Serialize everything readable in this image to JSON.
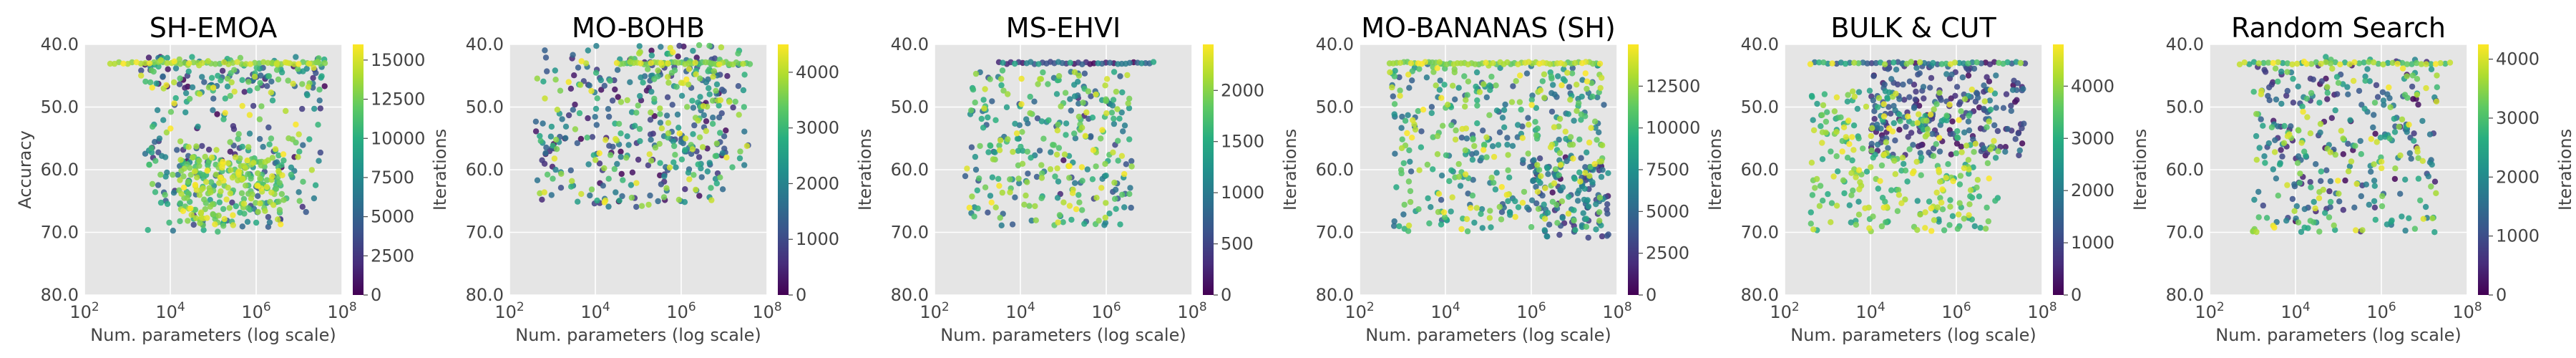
{
  "figure": {
    "background": "#ffffff",
    "axes_facecolor": "#e5e5e5",
    "grid_color": "#ffffff",
    "colormap": "viridis"
  },
  "chart_data": [
    {
      "type": "scatter",
      "title": "SH-EMOA",
      "xlabel": "Num. parameters (log scale)",
      "ylabel": "Accuracy",
      "xscale": "log",
      "xlim": [
        100,
        100000000
      ],
      "ylim": [
        40,
        80
      ],
      "xticks": [
        "10^2",
        "10^4",
        "10^6",
        "10^8"
      ],
      "yticks": [
        "40.0",
        "50.0",
        "60.0",
        "70.0",
        "80.0"
      ],
      "colorbar": {
        "label": "Iterations",
        "range": [
          0,
          16000
        ],
        "ticks": [
          "0",
          "2500",
          "5000",
          "7500",
          "10000",
          "12500",
          "15000"
        ]
      },
      "clusters": [
        {
          "x_log": [
            3.3,
            7.6
          ],
          "y": [
            42,
            47
          ],
          "c": [
            0,
            16000
          ],
          "n": 110
        },
        {
          "x_log": [
            3.5,
            7.5
          ],
          "y": [
            45,
            62
          ],
          "c": [
            0,
            16000
          ],
          "n": 130
        },
        {
          "x_log": [
            4.2,
            6.6
          ],
          "y": [
            58,
            69
          ],
          "c": [
            10000,
            16000
          ],
          "n": 200
        },
        {
          "x_log": [
            3.4,
            7.4
          ],
          "y": [
            55,
            70
          ],
          "c": [
            2000,
            14000
          ],
          "n": 110
        }
      ],
      "frontier": {
        "x_log": [
          2.6,
          7.6
        ],
        "y": 43,
        "c": [
          12000,
          16000
        ],
        "n": 50
      }
    },
    {
      "type": "scatter",
      "title": "MO-BOHB",
      "xlabel": "Num. parameters (log scale)",
      "ylabel": "",
      "xscale": "log",
      "xlim": [
        100,
        100000000
      ],
      "ylim": [
        40,
        80
      ],
      "xticks": [
        "10^2",
        "10^4",
        "10^6",
        "10^8"
      ],
      "yticks": [
        "40.0",
        "50.0",
        "60.0",
        "70.0",
        "80.0"
      ],
      "colorbar": {
        "label": "Iterations",
        "range": [
          0,
          4500
        ],
        "ticks": [
          "0",
          "1000",
          "2000",
          "3000",
          "4000"
        ]
      },
      "clusters": [
        {
          "x_log": [
            2.6,
            7.0
          ],
          "y": [
            40,
            66
          ],
          "c": [
            0,
            4500
          ],
          "n": 320
        },
        {
          "x_log": [
            5.2,
            7.6
          ],
          "y": [
            40,
            60
          ],
          "c": [
            0,
            4500
          ],
          "n": 110
        }
      ],
      "frontier": {
        "x_log": [
          4.5,
          7.6
        ],
        "y": 43,
        "c": [
          3000,
          4500
        ],
        "n": 40
      }
    },
    {
      "type": "scatter",
      "title": "MS-EHVI",
      "xlabel": "Num. parameters (log scale)",
      "ylabel": "",
      "xscale": "log",
      "xlim": [
        100,
        100000000
      ],
      "ylim": [
        40,
        80
      ],
      "xticks": [
        "10^2",
        "10^4",
        "10^6",
        "10^8"
      ],
      "yticks": [
        "40.0",
        "50.0",
        "60.0",
        "70.0",
        "80.0"
      ],
      "colorbar": {
        "label": "Iterations",
        "range": [
          0,
          2450
        ],
        "ticks": [
          "0",
          "500",
          "1000",
          "1500",
          "2000"
        ]
      },
      "clusters": [
        {
          "x_log": [
            2.7,
            6.6
          ],
          "y": [
            44,
            69
          ],
          "c": [
            600,
            2450
          ],
          "n": 270
        },
        {
          "x_log": [
            4.5,
            6.4
          ],
          "y": [
            45,
            65
          ],
          "c": [
            0,
            2450
          ],
          "n": 30
        }
      ],
      "frontier": {
        "x_log": [
          3.5,
          7.1
        ],
        "y": 43,
        "c": [
          0,
          1500
        ],
        "n": 40
      }
    },
    {
      "type": "scatter",
      "title": "MO-BANANAS (SH)",
      "xlabel": "Num. parameters (log scale)",
      "ylabel": "",
      "xscale": "log",
      "xlim": [
        100,
        100000000
      ],
      "ylim": [
        40,
        80
      ],
      "xticks": [
        "10^2",
        "10^4",
        "10^6",
        "10^8"
      ],
      "yticks": [
        "40.0",
        "50.0",
        "60.0",
        "70.0",
        "80.0"
      ],
      "colorbar": {
        "label": "Iterations",
        "range": [
          0,
          15000
        ],
        "ticks": [
          "0",
          "2500",
          "5000",
          "7500",
          "10000",
          "12500"
        ]
      },
      "clusters": [
        {
          "x_log": [
            2.7,
            7.7
          ],
          "y": [
            43,
            70
          ],
          "c": [
            4000,
            15000
          ],
          "n": 420
        },
        {
          "x_log": [
            6.0,
            7.8
          ],
          "y": [
            58,
            71
          ],
          "c": [
            0,
            8000
          ],
          "n": 90
        }
      ],
      "frontier": {
        "x_log": [
          2.7,
          7.6
        ],
        "y": 43,
        "c": [
          11000,
          15000
        ],
        "n": 60
      }
    },
    {
      "type": "scatter",
      "title": "BULK & CUT",
      "xlabel": "Num. parameters (log scale)",
      "ylabel": "",
      "xscale": "log",
      "xlim": [
        100,
        100000000
      ],
      "ylim": [
        40,
        80
      ],
      "xticks": [
        "10^2",
        "10^4",
        "10^6",
        "10^8"
      ],
      "yticks": [
        "40.0",
        "50.0",
        "60.0",
        "70.0",
        "80.0"
      ],
      "colorbar": {
        "label": "Iterations",
        "range": [
          0,
          4800
        ],
        "ticks": [
          "0",
          "1000",
          "2000",
          "3000",
          "4000"
        ]
      },
      "clusters": [
        {
          "x_log": [
            4.0,
            7.6
          ],
          "y": [
            43,
            58
          ],
          "c": [
            0,
            2000
          ],
          "n": 220
        },
        {
          "x_log": [
            2.6,
            7.0
          ],
          "y": [
            47,
            70
          ],
          "c": [
            2500,
            4800
          ],
          "n": 290
        }
      ],
      "frontier": {
        "x_log": [
          2.6,
          7.6
        ],
        "y": 43,
        "c": [
          0,
          4800
        ],
        "n": 50
      }
    },
    {
      "type": "scatter",
      "title": "Random Search",
      "xlabel": "Num. parameters (log scale)",
      "ylabel": "",
      "xscale": "log",
      "xlim": [
        100,
        100000000
      ],
      "ylim": [
        40,
        80
      ],
      "xticks": [
        "10^2",
        "10^4",
        "10^6",
        "10^8"
      ],
      "yticks": [
        "40.0",
        "50.0",
        "60.0",
        "70.0",
        "80.0"
      ],
      "colorbar": {
        "label": "Iterations",
        "range": [
          0,
          4250
        ],
        "ticks": [
          "0",
          "1000",
          "2000",
          "3000",
          "4000"
        ]
      },
      "clusters": [
        {
          "x_log": [
            3.0,
            7.3
          ],
          "y": [
            42,
            70
          ],
          "c": [
            0,
            4250
          ],
          "n": 340
        }
      ],
      "frontier": {
        "x_log": [
          2.7,
          7.6
        ],
        "y": 43,
        "c": [
          2500,
          4250
        ],
        "n": 45
      }
    }
  ]
}
